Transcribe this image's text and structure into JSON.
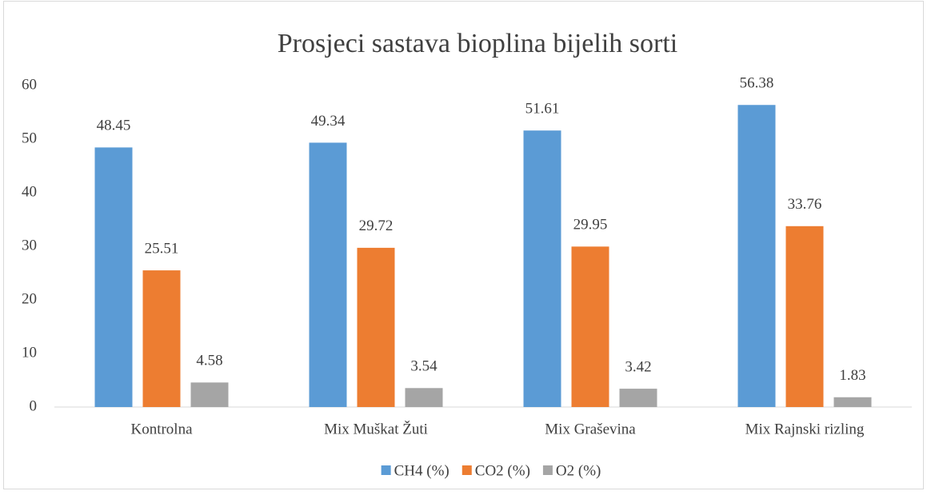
{
  "chart_data": {
    "type": "bar",
    "title": "Prosjeci sastava bioplina bijelih sorti",
    "categories": [
      "Kontrolna",
      "Mix Muškat Žuti",
      "Mix Graševina",
      "Mix Rajnski rizling"
    ],
    "series": [
      {
        "name": "CH4 (%)",
        "color": "#5b9bd5",
        "values": [
          48.45,
          49.34,
          51.61,
          56.38
        ]
      },
      {
        "name": "CO2 (%)",
        "color": "#ed7d31",
        "values": [
          25.51,
          29.72,
          29.95,
          33.76
        ]
      },
      {
        "name": "O2 (%)",
        "color": "#a5a5a5",
        "values": [
          4.58,
          3.54,
          3.42,
          1.83
        ]
      }
    ],
    "ylim": [
      0,
      60
    ],
    "yticks": [
      0,
      10,
      20,
      30,
      40,
      50,
      60
    ],
    "grid": false,
    "legend": "bottom"
  }
}
